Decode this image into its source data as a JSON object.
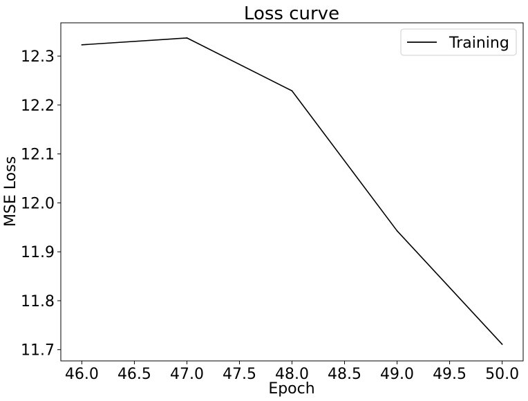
{
  "chart_data": {
    "type": "line",
    "title": "Loss curve",
    "xlabel": "Epoch",
    "ylabel": "MSE Loss",
    "xlim": [
      45.8,
      50.2
    ],
    "ylim": [
      11.677,
      12.368
    ],
    "xticks": [
      46.0,
      46.5,
      47.0,
      47.5,
      48.0,
      48.5,
      49.0,
      49.5,
      50.0
    ],
    "xtick_labels": [
      "46.0",
      "46.5",
      "47.0",
      "47.5",
      "48.0",
      "48.5",
      "49.0",
      "49.5",
      "50.0"
    ],
    "yticks": [
      11.7,
      11.8,
      11.9,
      12.0,
      12.1,
      12.2,
      12.3
    ],
    "ytick_labels": [
      "11.7",
      "11.8",
      "11.9",
      "12.0",
      "12.1",
      "12.2",
      "12.3"
    ],
    "grid": false,
    "legend_position": "top-right",
    "series": [
      {
        "name": "Training",
        "color": "#000000",
        "x": [
          46,
          47,
          48,
          49,
          50
        ],
        "y": [
          12.323,
          12.337,
          12.229,
          11.943,
          11.711
        ]
      }
    ]
  }
}
